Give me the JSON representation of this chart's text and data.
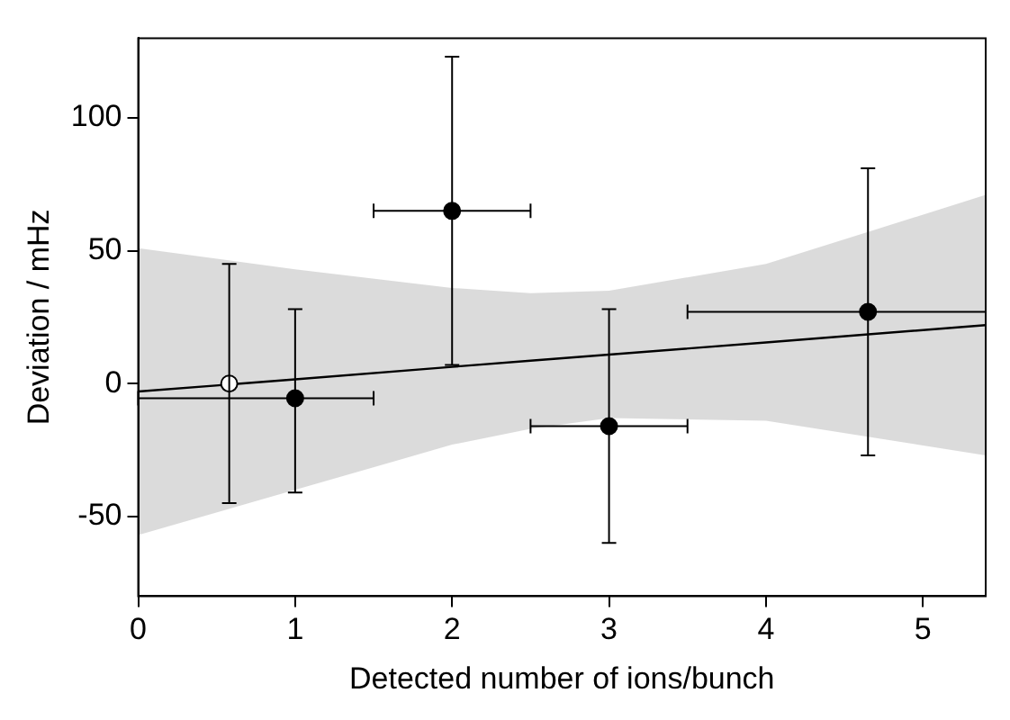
{
  "chart_data": {
    "type": "scatter",
    "xlabel": "Detected number of ions/bunch",
    "ylabel": "Deviation / mHz",
    "xlim": [
      0,
      5.4
    ],
    "xticks": [
      0,
      1,
      2,
      3,
      4,
      5
    ],
    "ylim": [
      -80,
      130
    ],
    "yticks": [
      -50,
      0,
      50,
      100
    ],
    "grid": false,
    "legend": false,
    "series": [
      {
        "type": "line",
        "marker": "none",
        "color": "#000000",
        "x": [
          0,
          1,
          2,
          2.5,
          3,
          4,
          5.4
        ],
        "values": [
          -3,
          1.6,
          6.3,
          8.6,
          10.9,
          15.5,
          22
        ],
        "lower": [
          -57,
          -40,
          -23,
          -17,
          -13,
          -14,
          -27
        ],
        "upper": [
          51,
          43,
          36,
          34,
          35,
          45,
          71
        ]
      },
      {
        "marker": "circle",
        "color": "#ffffff",
        "x": [
          0.58
        ],
        "values": [
          0
        ],
        "errors": [
          [
            -45,
            45
          ]
        ]
      },
      {
        "marker": "circle",
        "color": "#000000",
        "x": [
          1,
          2,
          3,
          4.65
        ],
        "values": [
          -5.5,
          65,
          -16,
          27
        ],
        "errors": [
          [
            -41,
            28
          ],
          [
            7,
            123
          ],
          [
            -60,
            28
          ],
          [
            -27,
            81
          ]
        ],
        "xerrors": [
          [
            0,
            1.5
          ],
          [
            1.5,
            2.5
          ],
          [
            2.5,
            3.5
          ],
          [
            3.5,
            5.4
          ]
        ]
      }
    ]
  }
}
